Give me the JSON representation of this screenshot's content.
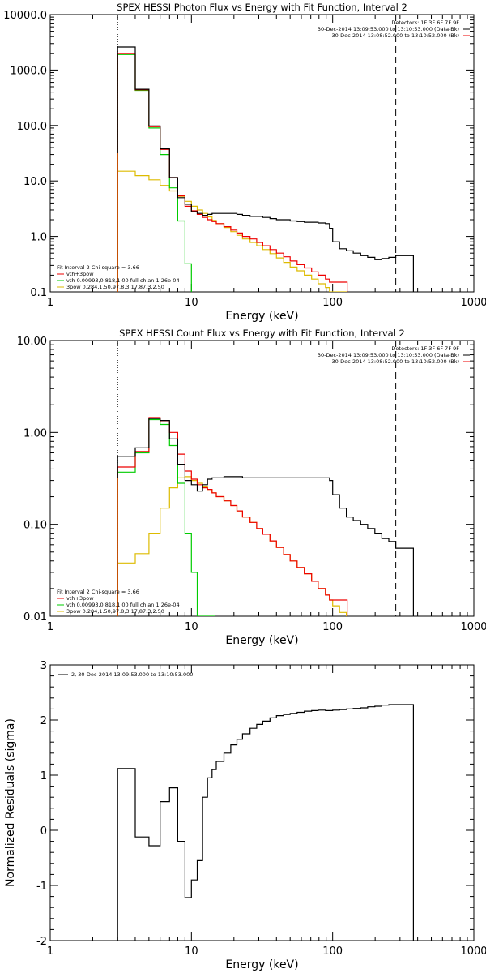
{
  "page": {
    "background": "#ffffff"
  },
  "colors": {
    "data": "#000000",
    "total": "#ee0000",
    "vth": "#00cc00",
    "pow": "#ddbb00",
    "edge": "#ff6600",
    "axis": "#000000"
  },
  "chart_data": [
    {
      "type": "line",
      "title": "SPEX HESSI Photon Flux vs Energy with Fit Function, Interval 2",
      "xlabel": "Energy (keV)",
      "ylabel": "",
      "xscale": "log",
      "yscale": "log",
      "xlim": [
        1,
        1000
      ],
      "ylim": [
        0.1,
        10000
      ],
      "xticks": [
        1,
        10,
        100,
        1000
      ],
      "xtick_labels": [
        "1",
        "10",
        "100",
        "1000"
      ],
      "yticks": [
        0.1,
        1,
        10,
        100,
        1000,
        10000
      ],
      "ytick_labels": [
        "0.1",
        "1.0",
        "10.0",
        "100.0",
        "1000.0",
        "10000.0"
      ],
      "vlines": [
        {
          "x": 3,
          "style": "dotted"
        },
        {
          "x": 280,
          "style": "dashed"
        }
      ],
      "legend_top_right": [
        "Detectors: 1F 3F 6F 7F 9F",
        "30-Dec-2014 13:09:53.000 to 13:10:53.000 (Data-Bk)",
        "30-Dec-2014 13:08:52.000 to 13:10:52.000 (Bk)"
      ],
      "legend_bottom_left": [
        "Fit Interval  2    Chi-square = 3.66",
        "vth+3pow",
        "vth 0.00993,0.818,1.00  full chian 1.26e-04",
        "3pow 0.284,1.50,97.8,3.17,87.3,2.50"
      ],
      "series": [
        {
          "name": "data",
          "role": "data",
          "x": [
            3,
            4,
            5,
            6,
            7,
            8,
            9,
            10,
            11,
            12,
            13,
            14,
            15,
            17,
            19,
            21,
            23,
            26,
            29,
            32,
            36,
            40,
            45,
            50,
            56,
            63,
            71,
            79,
            89,
            95,
            100,
            112,
            125,
            140,
            158,
            177,
            199,
            223,
            250,
            280
          ],
          "y": [
            2600,
            450,
            98,
            38,
            11.5,
            5.0,
            3.8,
            2.8,
            2.6,
            2.4,
            2.5,
            2.6,
            2.6,
            2.6,
            2.6,
            2.5,
            2.4,
            2.3,
            2.3,
            2.2,
            2.1,
            2.0,
            2.0,
            1.9,
            1.85,
            1.8,
            1.8,
            1.75,
            1.7,
            1.4,
            0.8,
            0.6,
            0.55,
            0.5,
            0.45,
            0.42,
            0.38,
            0.4,
            0.42,
            0.45
          ]
        },
        {
          "name": "vth+3pow",
          "role": "total",
          "x": [
            3,
            4,
            5,
            6,
            7,
            8,
            9,
            10,
            11,
            12,
            13,
            14,
            15,
            17,
            19,
            21,
            23,
            26,
            29,
            32,
            36,
            40,
            45,
            50,
            56,
            63,
            71,
            79,
            89,
            95
          ],
          "y": [
            2000,
            440,
            95,
            37,
            11.5,
            5.4,
            3.5,
            2.9,
            2.5,
            2.2,
            2.0,
            1.85,
            1.7,
            1.5,
            1.3,
            1.15,
            1.0,
            0.9,
            0.78,
            0.68,
            0.58,
            0.5,
            0.43,
            0.36,
            0.31,
            0.27,
            0.23,
            0.2,
            0.17,
            0.15
          ]
        },
        {
          "name": "vth",
          "role": "vth",
          "x": [
            3,
            4,
            5,
            6,
            7,
            8,
            9,
            10
          ],
          "y": [
            1900,
            430,
            90,
            30,
            7.5,
            1.9,
            0.32,
            0.05
          ]
        },
        {
          "name": "3pow",
          "role": "pow",
          "x": [
            3,
            4,
            5,
            6,
            7,
            8,
            9,
            10,
            11,
            12,
            13,
            14,
            15,
            17,
            19,
            21,
            23,
            26,
            29,
            32,
            36,
            40,
            45,
            50,
            56,
            63,
            71,
            79,
            89,
            95
          ],
          "y": [
            15,
            12.5,
            10.5,
            8.3,
            6.6,
            5.3,
            4.3,
            3.5,
            3.0,
            2.6,
            2.25,
            1.95,
            1.7,
            1.45,
            1.22,
            1.05,
            0.9,
            0.78,
            0.68,
            0.58,
            0.49,
            0.41,
            0.34,
            0.28,
            0.24,
            0.2,
            0.17,
            0.14,
            0.12,
            0.1
          ]
        }
      ]
    },
    {
      "type": "line",
      "title": "SPEX HESSI Count Flux vs Energy with Fit Function, Interval 2",
      "xlabel": "Energy (keV)",
      "ylabel": "",
      "xscale": "log",
      "yscale": "log",
      "xlim": [
        1,
        1000
      ],
      "ylim": [
        0.01,
        10
      ],
      "xticks": [
        1,
        10,
        100,
        1000
      ],
      "xtick_labels": [
        "1",
        "10",
        "100",
        "1000"
      ],
      "yticks": [
        0.01,
        0.1,
        1,
        10
      ],
      "ytick_labels": [
        "0.01",
        "0.10",
        "1.00",
        "10.00"
      ],
      "vlines": [
        {
          "x": 3,
          "style": "dotted"
        },
        {
          "x": 280,
          "style": "dashed"
        }
      ],
      "legend_top_right": [
        "Detectors: 1F 3F 6F 7F 9F",
        "30-Dec-2014 13:09:53.000 to 13:10:53.000 (Data-Bk)",
        "30-Dec-2014 13:08:52.000 to 13:10:52.000 (Bk)"
      ],
      "legend_bottom_left": [
        "Fit Interval  2    Chi-square = 3.66",
        "vth+3pow",
        "vth 0.00993,0.818,1.00  full chian 1.26e-04",
        "3pow 0.284,1.50,97.8,3.17,87.3,2.50"
      ],
      "series": [
        {
          "name": "data",
          "role": "data",
          "x": [
            3,
            4,
            5,
            6,
            7,
            8,
            9,
            10,
            11,
            12,
            13,
            14,
            15,
            17,
            19,
            21,
            23,
            26,
            29,
            32,
            36,
            40,
            45,
            50,
            56,
            63,
            71,
            79,
            89,
            95,
            100,
            112,
            125,
            140,
            158,
            177,
            199,
            223,
            250,
            280
          ],
          "y": [
            0.55,
            0.68,
            1.42,
            1.35,
            0.85,
            0.45,
            0.3,
            0.27,
            0.23,
            0.27,
            0.31,
            0.32,
            0.32,
            0.33,
            0.33,
            0.33,
            0.32,
            0.32,
            0.32,
            0.32,
            0.32,
            0.32,
            0.32,
            0.32,
            0.32,
            0.32,
            0.32,
            0.32,
            0.32,
            0.3,
            0.21,
            0.15,
            0.12,
            0.11,
            0.1,
            0.09,
            0.08,
            0.07,
            0.065,
            0.055
          ]
        },
        {
          "name": "vth+3pow",
          "role": "total",
          "x": [
            3,
            4,
            5,
            6,
            7,
            8,
            9,
            10,
            11,
            12,
            13,
            14,
            15,
            17,
            19,
            21,
            23,
            26,
            29,
            32,
            36,
            40,
            45,
            50,
            56,
            63,
            71,
            79,
            89,
            95
          ],
          "y": [
            0.42,
            0.62,
            1.45,
            1.3,
            1.0,
            0.58,
            0.38,
            0.31,
            0.27,
            0.25,
            0.24,
            0.22,
            0.2,
            0.18,
            0.16,
            0.14,
            0.12,
            0.105,
            0.09,
            0.078,
            0.066,
            0.056,
            0.047,
            0.04,
            0.034,
            0.029,
            0.024,
            0.02,
            0.017,
            0.015
          ]
        },
        {
          "name": "vth",
          "role": "vth",
          "x": [
            3,
            4,
            5,
            6,
            7,
            8,
            9,
            10,
            11
          ],
          "y": [
            0.37,
            0.6,
            1.38,
            1.22,
            0.72,
            0.28,
            0.08,
            0.03,
            0.01
          ]
        },
        {
          "name": "3pow",
          "role": "pow",
          "x": [
            3,
            4,
            5,
            6,
            7,
            8,
            9,
            10,
            11,
            12,
            13,
            14,
            15,
            17,
            19,
            21,
            23,
            26,
            29,
            32,
            36,
            40,
            45,
            50,
            56,
            63,
            71,
            79,
            89,
            95,
            100,
            112,
            125
          ],
          "y": [
            0.038,
            0.048,
            0.08,
            0.15,
            0.25,
            0.32,
            0.33,
            0.3,
            0.28,
            0.26,
            0.24,
            0.22,
            0.2,
            0.18,
            0.16,
            0.14,
            0.12,
            0.105,
            0.09,
            0.078,
            0.066,
            0.056,
            0.047,
            0.04,
            0.034,
            0.029,
            0.024,
            0.02,
            0.017,
            0.015,
            0.013,
            0.011,
            0.0095
          ]
        }
      ]
    },
    {
      "type": "line",
      "title": "",
      "xlabel": "Energy (keV)",
      "ylabel": "Normalized Residuals (sigma)",
      "xscale": "log",
      "yscale": "linear",
      "xlim": [
        1,
        1000
      ],
      "ylim": [
        -2,
        3
      ],
      "xticks": [
        1,
        10,
        100,
        1000
      ],
      "xtick_labels": [
        "1",
        "10",
        "100",
        "1000"
      ],
      "yticks": [
        -2,
        -1,
        0,
        1,
        2,
        3
      ],
      "ytick_labels": [
        "-2",
        "-1",
        "0",
        "1",
        "2",
        "3"
      ],
      "legend_top_left": [
        "2, 30-Dec-2014 13:09:53.000 to 13:10:53.000"
      ],
      "series": [
        {
          "name": "2, 30-Dec-2014 13:09:53.000 to 13:10:53.000",
          "role": "data",
          "x": [
            3,
            4,
            5,
            6,
            7,
            8,
            9,
            10,
            11,
            12,
            13,
            14,
            15,
            17,
            19,
            21,
            23,
            26,
            29,
            32,
            36,
            40,
            45,
            50,
            56,
            63,
            71,
            79,
            89,
            100,
            112,
            125,
            140,
            158,
            177,
            199,
            223,
            250,
            280
          ],
          "y": [
            1.12,
            -0.12,
            -0.28,
            0.52,
            0.77,
            -0.2,
            -1.22,
            -0.9,
            -0.55,
            0.6,
            0.95,
            1.1,
            1.25,
            1.4,
            1.55,
            1.65,
            1.75,
            1.85,
            1.92,
            1.98,
            2.04,
            2.08,
            2.1,
            2.12,
            2.14,
            2.16,
            2.17,
            2.18,
            2.17,
            2.18,
            2.19,
            2.2,
            2.21,
            2.22,
            2.24,
            2.25,
            2.27,
            2.28,
            2.28
          ]
        }
      ]
    }
  ]
}
